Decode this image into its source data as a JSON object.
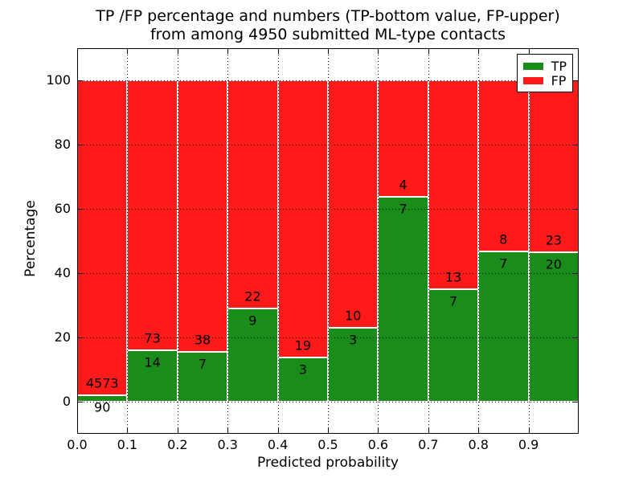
{
  "figure": {
    "title_line1": "TP /FP percentage and numbers (TP-bottom value, FP-upper)",
    "title_line2": "from among 4950 submitted ML-type contacts",
    "xlabel": "Predicted probability",
    "ylabel": "Percentage"
  },
  "legend": {
    "items": [
      {
        "label": "TP",
        "color": "#198c19"
      },
      {
        "label": "FP",
        "color": "#ff1a1a"
      }
    ]
  },
  "chart_data": {
    "type": "bar",
    "stacked": true,
    "normalized": "each bin stacked to 100%",
    "title": "TP /FP percentage and numbers (TP-bottom value, FP-upper)\nfrom among 4950 submitted ML-type contacts",
    "xlabel": "Predicted probability",
    "ylabel": "Percentage",
    "xlim": [
      0.0,
      1.0
    ],
    "ylim": [
      -10,
      110
    ],
    "grid": "dotted black, drawn over bars",
    "legend_position": "upper-right",
    "x_tick_labels": [
      "0.0",
      "0.1",
      "0.2",
      "0.3",
      "0.4",
      "0.5",
      "0.6",
      "0.7",
      "0.8",
      "0.9"
    ],
    "y_tick_values": [
      0,
      20,
      40,
      60,
      80,
      100
    ],
    "series": [
      {
        "name": "TP",
        "color": "#198c19"
      },
      {
        "name": "FP",
        "color": "#ff1a1a"
      }
    ],
    "bins": [
      {
        "x_range": [
          0.0,
          0.1
        ],
        "tp": 90,
        "fp": 4573
      },
      {
        "x_range": [
          0.1,
          0.2
        ],
        "tp": 14,
        "fp": 73
      },
      {
        "x_range": [
          0.2,
          0.3
        ],
        "tp": 7,
        "fp": 38
      },
      {
        "x_range": [
          0.3,
          0.4
        ],
        "tp": 9,
        "fp": 22
      },
      {
        "x_range": [
          0.4,
          0.5
        ],
        "tp": 3,
        "fp": 19
      },
      {
        "x_range": [
          0.5,
          0.6
        ],
        "tp": 3,
        "fp": 10
      },
      {
        "x_range": [
          0.6,
          0.7
        ],
        "tp": 7,
        "fp": 4
      },
      {
        "x_range": [
          0.7,
          0.8
        ],
        "tp": 7,
        "fp": 13
      },
      {
        "x_range": [
          0.8,
          0.9
        ],
        "tp": 7,
        "fp": 8
      },
      {
        "x_range": [
          0.9,
          1.0
        ],
        "tp": 20,
        "fp": 23
      }
    ],
    "total_submitted": 4950
  }
}
